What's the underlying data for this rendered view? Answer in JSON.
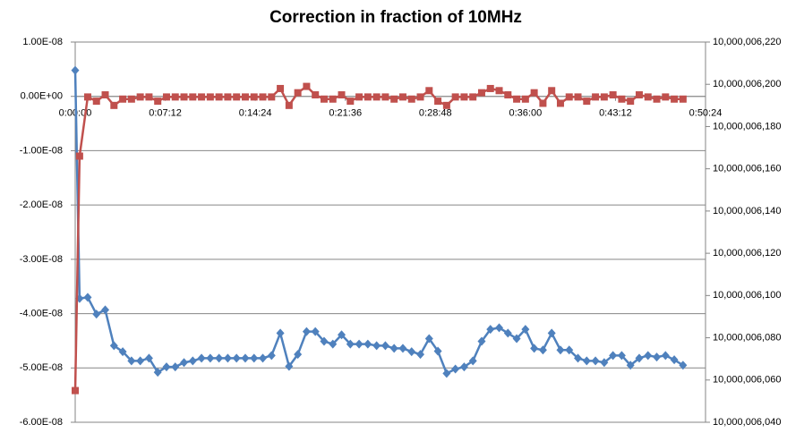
{
  "chart_data": {
    "type": "line",
    "title": "Correction in fraction of 10MHz",
    "x": [
      0,
      21,
      60,
      102,
      144,
      186,
      228,
      270,
      312,
      354,
      396,
      438,
      480,
      522,
      564,
      606,
      648,
      690,
      732,
      774,
      816,
      858,
      900,
      942,
      984,
      1026,
      1068,
      1110,
      1152,
      1194,
      1236,
      1278,
      1320,
      1362,
      1404,
      1446,
      1488,
      1530,
      1572,
      1614,
      1656,
      1698,
      1740,
      1782,
      1824,
      1866,
      1908,
      1950,
      1992,
      2034,
      2076,
      2118,
      2160,
      2202,
      2244,
      2286,
      2328,
      2370,
      2412,
      2454,
      2496,
      2538,
      2580,
      2622,
      2664,
      2706,
      2748,
      2790,
      2832,
      2874,
      2916
    ],
    "xlim": [
      0,
      3024
    ],
    "xticks": [
      {
        "value": 0,
        "label": "0:00:00"
      },
      {
        "value": 432,
        "label": "0:07:12"
      },
      {
        "value": 864,
        "label": "0:14:24"
      },
      {
        "value": 1296,
        "label": "0:21:36"
      },
      {
        "value": 1728,
        "label": "0:28:48"
      },
      {
        "value": 2160,
        "label": "0:36:00"
      },
      {
        "value": 2592,
        "label": "0:43:12"
      },
      {
        "value": 3024,
        "label": "0:50:24"
      }
    ],
    "ylim": [
      -6e-08,
      1e-08
    ],
    "yticks": [
      {
        "value": 1e-08,
        "label": "1.00E-08"
      },
      {
        "value": 0,
        "label": "0.00E+00"
      },
      {
        "value": -1e-08,
        "label": "-1.00E-08"
      },
      {
        "value": -2e-08,
        "label": "-2.00E-08"
      },
      {
        "value": -3e-08,
        "label": "-3.00E-08"
      },
      {
        "value": -4e-08,
        "label": "-4.00E-08"
      },
      {
        "value": -5e-08,
        "label": "-5.00E-08"
      },
      {
        "value": -6e-08,
        "label": "-6.00E-08"
      }
    ],
    "y2lim": [
      10000006040,
      10000006220
    ],
    "y2ticks": [
      {
        "value": 10000006220,
        "label": "10,000,006,220"
      },
      {
        "value": 10000006200,
        "label": "10,000,006,200"
      },
      {
        "value": 10000006180,
        "label": "10,000,006,180"
      },
      {
        "value": 10000006160,
        "label": "10,000,006,160"
      },
      {
        "value": 10000006140,
        "label": "10,000,006,140"
      },
      {
        "value": 10000006120,
        "label": "10,000,006,120"
      },
      {
        "value": 10000006100,
        "label": "10,000,006,100"
      },
      {
        "value": 10000006080,
        "label": "10,000,006,080"
      },
      {
        "value": 10000006060,
        "label": "10,000,006,060"
      },
      {
        "value": 10000006040,
        "label": "10,000,006,040"
      }
    ],
    "grid": true,
    "series": [
      {
        "color": "#4f81bd",
        "marker": "diamond",
        "values": [
          4.8e-09,
          -3.72e-08,
          -3.7e-08,
          -4.01e-08,
          -3.93e-08,
          -4.59e-08,
          -4.7e-08,
          -4.87e-08,
          -4.87e-08,
          -4.82e-08,
          -5.08e-08,
          -4.98e-08,
          -4.98e-08,
          -4.9e-08,
          -4.87e-08,
          -4.82e-08,
          -4.82e-08,
          -4.82e-08,
          -4.82e-08,
          -4.82e-08,
          -4.82e-08,
          -4.82e-08,
          -4.82e-08,
          -4.77e-08,
          -4.36e-08,
          -4.97e-08,
          -4.75e-08,
          -4.33e-08,
          -4.33e-08,
          -4.51e-08,
          -4.56e-08,
          -4.39e-08,
          -4.56e-08,
          -4.56e-08,
          -4.56e-08,
          -4.59e-08,
          -4.59e-08,
          -4.64e-08,
          -4.64e-08,
          -4.7e-08,
          -4.75e-08,
          -4.46e-08,
          -4.69e-08,
          -5.1e-08,
          -5.02e-08,
          -4.98e-08,
          -4.87e-08,
          -4.51e-08,
          -4.29e-08,
          -4.26e-08,
          -4.36e-08,
          -4.46e-08,
          -4.29e-08,
          -4.64e-08,
          -4.67e-08,
          -4.36e-08,
          -4.67e-08,
          -4.67e-08,
          -4.82e-08,
          -4.87e-08,
          -4.87e-08,
          -4.9e-08,
          -4.77e-08,
          -4.77e-08,
          -4.95e-08,
          -4.82e-08,
          -4.77e-08,
          -4.8e-08,
          -4.77e-08,
          -4.85e-08,
          -4.95e-08
        ]
      },
      {
        "color": "#c0504d",
        "marker": "square",
        "axis": "y2",
        "values": [
          10000006055,
          10000006166,
          10000006194,
          10000006192,
          10000006195,
          10000006190,
          10000006193,
          10000006193,
          10000006194,
          10000006194,
          10000006192,
          10000006194,
          10000006194,
          10000006194,
          10000006194,
          10000006194,
          10000006194,
          10000006194,
          10000006194,
          10000006194,
          10000006194,
          10000006194,
          10000006194,
          10000006194,
          10000006198,
          10000006190,
          10000006196,
          10000006199,
          10000006195,
          10000006193,
          10000006193,
          10000006195,
          10000006192,
          10000006194,
          10000006194,
          10000006194,
          10000006194,
          10000006193,
          10000006194,
          10000006193,
          10000006194,
          10000006197,
          10000006192,
          10000006190,
          10000006194,
          10000006194,
          10000006194,
          10000006196,
          10000006198,
          10000006197,
          10000006195,
          10000006193,
          10000006193,
          10000006196,
          10000006191,
          10000006197,
          10000006191,
          10000006194,
          10000006194,
          10000006192,
          10000006194,
          10000006194,
          10000006195,
          10000006193,
          10000006192,
          10000006195,
          10000006194,
          10000006193,
          10000006194,
          10000006193,
          10000006193
        ]
      }
    ]
  }
}
